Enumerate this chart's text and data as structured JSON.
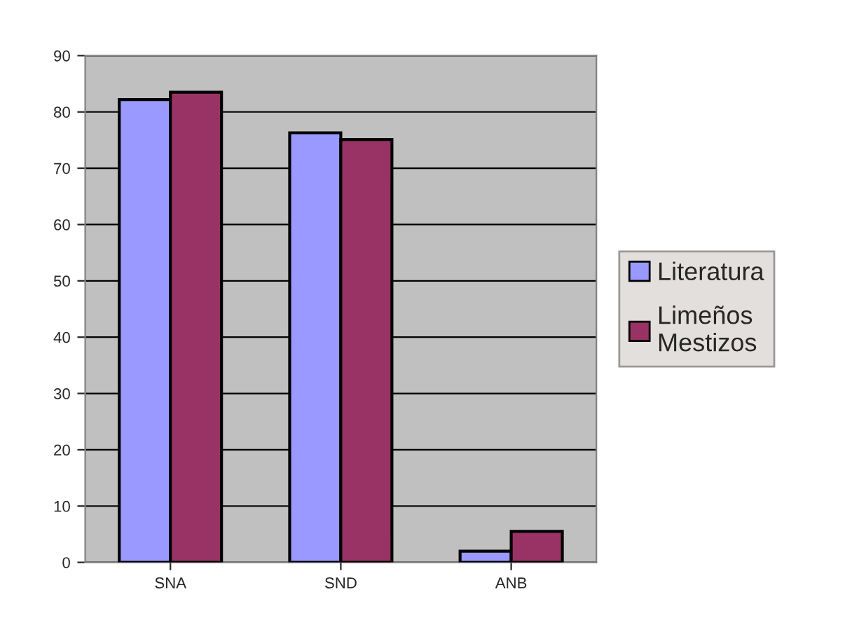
{
  "chart_data": {
    "type": "bar",
    "categories": [
      "SNA",
      "SND",
      "ANB"
    ],
    "series": [
      {
        "name": "Literatura",
        "color": "#9999ff",
        "values": [
          82.2,
          76.3,
          2
        ]
      },
      {
        "name": "Limeños\nMestizos",
        "color": "#993366",
        "values": [
          83.5,
          75.1,
          5.5
        ]
      }
    ],
    "ylim": [
      0,
      90
    ],
    "yticks": [
      0,
      10,
      20,
      30,
      40,
      50,
      60,
      70,
      80,
      90
    ],
    "grid": "y",
    "legend": "right"
  }
}
